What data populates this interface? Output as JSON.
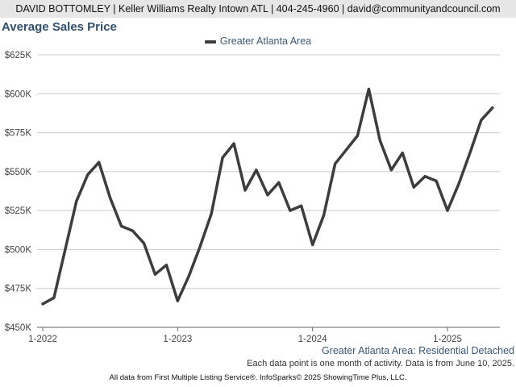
{
  "header": {
    "contact": "DAVID BOTTOMLEY | Keller Williams Realty Intown ATL | 404-245-4960 | david@communityandcouncil.com"
  },
  "colors": {
    "line": "#3d3d3d",
    "grid": "#cccccc",
    "title": "#2f4f6f"
  },
  "chart_data": {
    "type": "line",
    "title": "Average Sales Price",
    "subtitle": "Greater Atlanta Area: Residential Detached",
    "note": "Each data point is one month of activity. Data is from June 10, 2025.",
    "legend": "top-center",
    "grid": true,
    "ylim": [
      450000,
      630000
    ],
    "yticks": [
      {
        "value": 450000,
        "label": "$450K"
      },
      {
        "value": 475000,
        "label": "$475K"
      },
      {
        "value": 500000,
        "label": "$500K"
      },
      {
        "value": 525000,
        "label": "$525K"
      },
      {
        "value": 550000,
        "label": "$550K"
      },
      {
        "value": 575000,
        "label": "$575K"
      },
      {
        "value": 600000,
        "label": "$600K"
      },
      {
        "value": 625000,
        "label": "$625K"
      }
    ],
    "xticks": [
      {
        "index": 0,
        "label": "1-2022"
      },
      {
        "index": 12,
        "label": "1-2023"
      },
      {
        "index": 24,
        "label": "1-2024"
      },
      {
        "index": 36,
        "label": "1-2025"
      }
    ],
    "series": [
      {
        "name": "Greater Atlanta Area",
        "x": [
          "2022-01",
          "2022-02",
          "2022-03",
          "2022-04",
          "2022-05",
          "2022-06",
          "2022-07",
          "2022-08",
          "2022-09",
          "2022-10",
          "2022-11",
          "2022-12",
          "2023-01",
          "2023-02",
          "2023-03",
          "2023-04",
          "2023-05",
          "2023-06",
          "2023-07",
          "2023-08",
          "2023-09",
          "2023-10",
          "2023-11",
          "2023-12",
          "2024-01",
          "2024-02",
          "2024-03",
          "2024-04",
          "2024-05",
          "2024-06",
          "2024-07",
          "2024-08",
          "2024-09",
          "2024-10",
          "2024-11",
          "2024-12",
          "2025-01",
          "2025-02",
          "2025-03",
          "2025-04",
          "2025-05"
        ],
        "values": [
          465000,
          469000,
          500000,
          531000,
          548000,
          556000,
          533000,
          515000,
          512000,
          504000,
          484000,
          490000,
          467000,
          483000,
          502000,
          523000,
          559000,
          568000,
          538000,
          551000,
          535000,
          543000,
          525000,
          528000,
          503000,
          522000,
          555000,
          564000,
          573000,
          603000,
          570000,
          551000,
          562000,
          540000,
          547000,
          544000,
          525000,
          542000,
          562000,
          583000,
          591000
        ]
      }
    ]
  },
  "footer": {
    "source": "All data from First Multiple Listing Service®. InfoSparks© 2025 ShowingTime Plus, LLC."
  }
}
